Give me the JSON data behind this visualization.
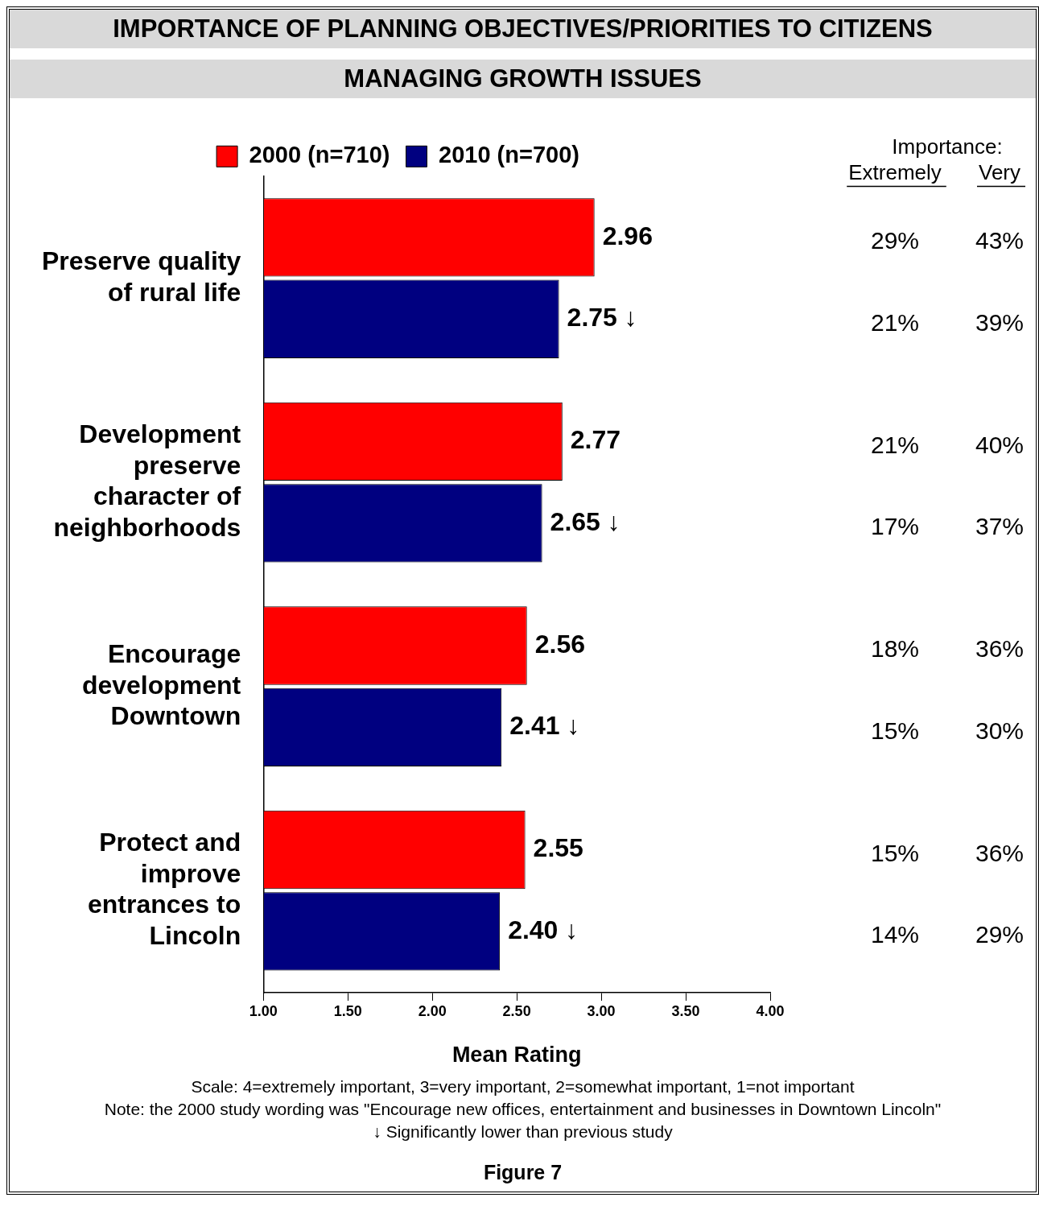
{
  "chart_data": {
    "type": "bar",
    "orientation": "horizontal",
    "title": "IMPORTANCE OF PLANNING OBJECTIVES/PRIORITIES TO CITIZENS",
    "subtitle": "MANAGING GROWTH ISSUES",
    "xlabel": "Mean Rating",
    "categories": [
      "Preserve quality of rural life",
      "Development preserve character of neighborhoods",
      "Encourage development Downtown",
      "Protect and improve entrances to Lincoln"
    ],
    "series": [
      {
        "name": "2000 (n=710)",
        "color": "#ff0000",
        "values": [
          2.96,
          2.77,
          2.56,
          2.55
        ],
        "value_labels": [
          "2.96",
          "2.77",
          "2.56",
          "2.55"
        ]
      },
      {
        "name": "2010 (n=700)",
        "color": "#000080",
        "values": [
          2.75,
          2.65,
          2.41,
          2.4
        ],
        "value_labels": [
          "2.75 ↓",
          "2.65 ↓",
          "2.41 ↓",
          "2.40 ↓"
        ]
      }
    ],
    "xlim": [
      1,
      4
    ],
    "xticks": [
      {
        "value": 1,
        "label": "1.00"
      },
      {
        "value": 1.5,
        "label": "1.50"
      },
      {
        "value": 2,
        "label": "2.00"
      },
      {
        "value": 2.5,
        "label": "2.50"
      },
      {
        "value": 3,
        "label": "3.00"
      },
      {
        "value": 3.5,
        "label": "3.50"
      },
      {
        "value": 4,
        "label": "4.00"
      }
    ],
    "grid": false,
    "legend": "top",
    "annotations": [
      "Importance:",
      "Extremely",
      "Very",
      "29%",
      "43%",
      "21%",
      "39%",
      "21%",
      "40%",
      "17%",
      "37%",
      "18%",
      "36%",
      "15%",
      "30%",
      "15%",
      "36%",
      "14%",
      "29%",
      "Scale: 4=extremely important, 3=very important, 2=somewhat important, 1=not important",
      "Note: the 2000 study wording was \"Encourage new offices, entertainment and businesses in Downtown Lincoln\"",
      "↓ Significantly lower than previous study",
      "Figure 7"
    ]
  }
}
